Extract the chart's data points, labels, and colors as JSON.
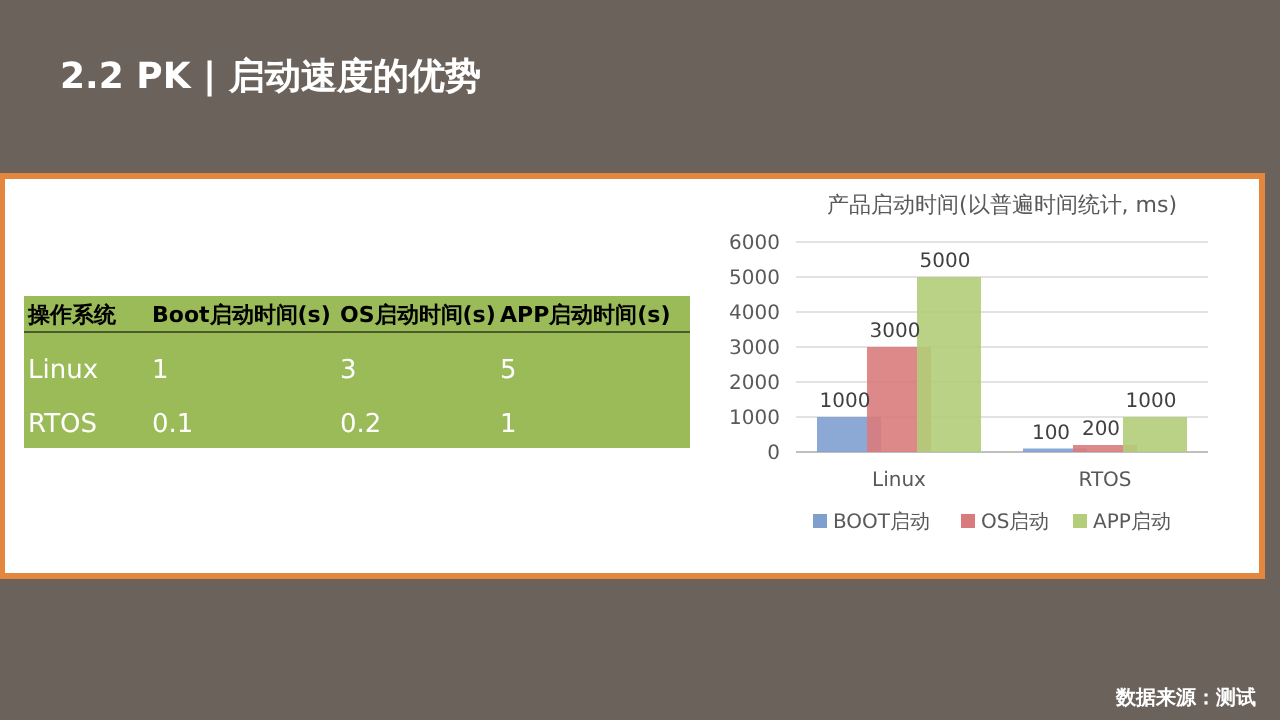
{
  "chart_data": [
    {
      "type": "other",
      "title": "2.2 PK | 启动速度的优势",
      "annotations": [
        "操作系统",
        "Boot启动时间(s)",
        "OS启动时间(s)",
        "APP启动时间(s)",
        "Linux",
        "1",
        "3",
        "5",
        "RTOS",
        "0.1",
        "0.2",
        "1",
        "数据来源：测试"
      ]
    },
    {
      "type": "bar",
      "title": "产品启动时间(以普遍时间统计, ms)",
      "categories": [
        "Linux",
        "RTOS"
      ],
      "series": [
        {
          "name": "BOOT启动",
          "color": "#7f9fcf",
          "values": [
            1000,
            100
          ]
        },
        {
          "name": "OS启动",
          "color": "#d97b7c",
          "values": [
            3000,
            200
          ]
        },
        {
          "name": "APP启动",
          "color": "#b3cd78",
          "values": [
            5000,
            1000
          ]
        }
      ],
      "ylim": [
        0,
        6000
      ],
      "yticks": [
        0,
        1000,
        2000,
        3000,
        4000,
        5000,
        6000
      ],
      "grid": "y",
      "legend": "bottom",
      "data_labels": true
    }
  ]
}
